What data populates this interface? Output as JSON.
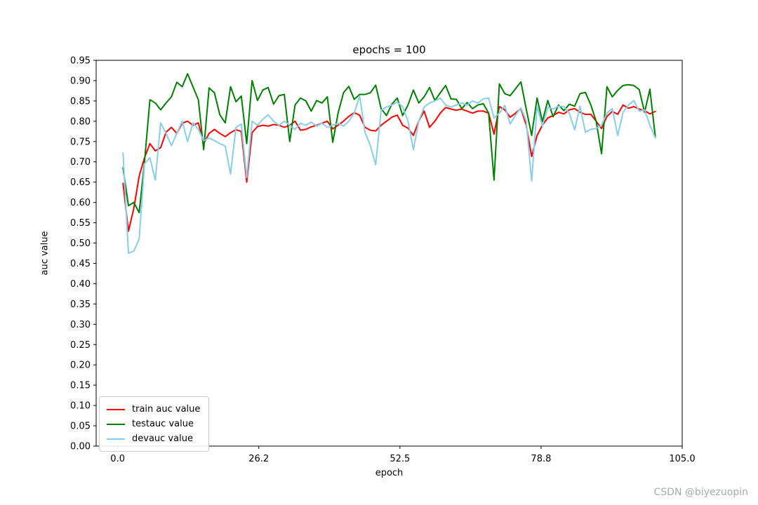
{
  "figure": {
    "title": "epochs = 100",
    "xlabel": "epoch",
    "ylabel": "auc value",
    "watermark": "CSDN @biyezuopin"
  },
  "colors": {
    "train": "#ff0000",
    "test": "#008000",
    "dev": "#87ceeb",
    "axis": "#000000",
    "legend_border": "#cccccc",
    "watermark": "#a6abb0"
  },
  "chart_data": {
    "type": "line",
    "title": "epochs = 100",
    "xlabel": "epoch",
    "ylabel": "auc value",
    "xlim": [
      -4,
      105
    ],
    "ylim": [
      0,
      0.95
    ],
    "grid": false,
    "legend_position": "lower left",
    "xticks": {
      "values": [
        0,
        26.25,
        52.5,
        78.75,
        105
      ],
      "labels": [
        "0.0",
        "26.2",
        "52.5",
        "78.8",
        "105.0"
      ]
    },
    "yticks": {
      "values": [
        0,
        0.05,
        0.1,
        0.15,
        0.2,
        0.25,
        0.3,
        0.35,
        0.4,
        0.45,
        0.5,
        0.55,
        0.6,
        0.65,
        0.7,
        0.75,
        0.8,
        0.85,
        0.9,
        0.95
      ],
      "labels": [
        "0.00",
        "0.05",
        "0.10",
        "0.15",
        "0.20",
        "0.25",
        "0.30",
        "0.35",
        "0.40",
        "0.45",
        "0.50",
        "0.55",
        "0.60",
        "0.65",
        "0.70",
        "0.75",
        "0.80",
        "0.85",
        "0.90",
        "0.95"
      ]
    },
    "x": [
      1,
      2,
      3,
      4,
      5,
      6,
      7,
      8,
      9,
      10,
      11,
      12,
      13,
      14,
      15,
      16,
      17,
      18,
      19,
      20,
      21,
      22,
      23,
      24,
      25,
      26,
      27,
      28,
      29,
      30,
      31,
      32,
      33,
      34,
      35,
      36,
      37,
      38,
      39,
      40,
      41,
      42,
      43,
      44,
      45,
      46,
      47,
      48,
      49,
      50,
      51,
      52,
      53,
      54,
      55,
      56,
      57,
      58,
      59,
      60,
      61,
      62,
      63,
      64,
      65,
      66,
      67,
      68,
      69,
      70,
      71,
      72,
      73,
      74,
      75,
      76,
      77,
      78,
      79,
      80,
      81,
      82,
      83,
      84,
      85,
      86,
      87,
      88,
      89,
      90,
      91,
      92,
      93,
      94,
      95,
      96,
      97,
      98,
      99,
      100
    ],
    "series": [
      {
        "name": "train auc value",
        "color": "#ff0000",
        "values": [
          0.647,
          0.529,
          0.585,
          0.665,
          0.71,
          0.745,
          0.727,
          0.735,
          0.773,
          0.785,
          0.77,
          0.795,
          0.8,
          0.79,
          0.796,
          0.745,
          0.77,
          0.78,
          0.77,
          0.762,
          0.772,
          0.779,
          0.775,
          0.65,
          0.772,
          0.787,
          0.79,
          0.788,
          0.792,
          0.79,
          0.785,
          0.79,
          0.8,
          0.778,
          0.78,
          0.786,
          0.79,
          0.795,
          0.8,
          0.781,
          0.79,
          0.8,
          0.812,
          0.821,
          0.815,
          0.785,
          0.778,
          0.776,
          0.79,
          0.8,
          0.81,
          0.815,
          0.79,
          0.783,
          0.765,
          0.8,
          0.825,
          0.785,
          0.8,
          0.82,
          0.834,
          0.83,
          0.827,
          0.83,
          0.825,
          0.82,
          0.825,
          0.825,
          0.82,
          0.768,
          0.836,
          0.828,
          0.81,
          0.82,
          0.831,
          0.79,
          0.713,
          0.765,
          0.79,
          0.808,
          0.814,
          0.822,
          0.818,
          0.828,
          0.831,
          0.822,
          0.817,
          0.817,
          0.8,
          0.782,
          0.812,
          0.824,
          0.817,
          0.84,
          0.832,
          0.836,
          0.83,
          0.826,
          0.818,
          0.824
        ]
      },
      {
        "name": "testauc value",
        "color": "#008000",
        "values": [
          0.685,
          0.592,
          0.6,
          0.575,
          0.7,
          0.853,
          0.845,
          0.828,
          0.845,
          0.86,
          0.896,
          0.885,
          0.917,
          0.885,
          0.853,
          0.73,
          0.882,
          0.87,
          0.816,
          0.796,
          0.885,
          0.848,
          0.862,
          0.745,
          0.9,
          0.851,
          0.877,
          0.883,
          0.842,
          0.863,
          0.866,
          0.75,
          0.84,
          0.857,
          0.85,
          0.825,
          0.851,
          0.845,
          0.86,
          0.748,
          0.82,
          0.87,
          0.886,
          0.854,
          0.866,
          0.866,
          0.87,
          0.889,
          0.831,
          0.814,
          0.842,
          0.857,
          0.814,
          0.84,
          0.877,
          0.845,
          0.86,
          0.883,
          0.851,
          0.87,
          0.888,
          0.855,
          0.854,
          0.831,
          0.846,
          0.831,
          0.84,
          0.843,
          0.82,
          0.655,
          0.892,
          0.868,
          0.863,
          0.88,
          0.897,
          0.83,
          0.765,
          0.857,
          0.799,
          0.851,
          0.811,
          0.84,
          0.826,
          0.842,
          0.837,
          0.868,
          0.871,
          0.84,
          0.8,
          0.72,
          0.885,
          0.86,
          0.876,
          0.888,
          0.89,
          0.888,
          0.878,
          0.822,
          0.879,
          0.761
        ]
      },
      {
        "name": "devauc value",
        "color": "#87ceeb",
        "values": [
          0.722,
          0.475,
          0.48,
          0.51,
          0.695,
          0.71,
          0.655,
          0.796,
          0.77,
          0.74,
          0.77,
          0.8,
          0.75,
          0.796,
          0.78,
          0.752,
          0.759,
          0.752,
          0.745,
          0.739,
          0.67,
          0.785,
          0.793,
          0.661,
          0.8,
          0.79,
          0.805,
          0.816,
          0.8,
          0.79,
          0.8,
          0.79,
          0.78,
          0.795,
          0.79,
          0.798,
          0.788,
          0.795,
          0.785,
          0.79,
          0.795,
          0.788,
          0.8,
          0.82,
          0.862,
          0.773,
          0.74,
          0.693,
          0.827,
          0.835,
          0.84,
          0.847,
          0.836,
          0.8,
          0.73,
          0.8,
          0.835,
          0.845,
          0.85,
          0.857,
          0.84,
          0.835,
          0.84,
          0.845,
          0.84,
          0.85,
          0.845,
          0.855,
          0.857,
          0.808,
          0.82,
          0.839,
          0.793,
          0.815,
          0.833,
          0.8,
          0.652,
          0.837,
          0.788,
          0.834,
          0.83,
          0.837,
          0.836,
          0.82,
          0.779,
          0.837,
          0.773,
          0.78,
          0.782,
          0.79,
          0.82,
          0.831,
          0.765,
          0.822,
          0.84,
          0.851,
          0.825,
          0.828,
          0.79,
          0.759
        ]
      }
    ]
  }
}
